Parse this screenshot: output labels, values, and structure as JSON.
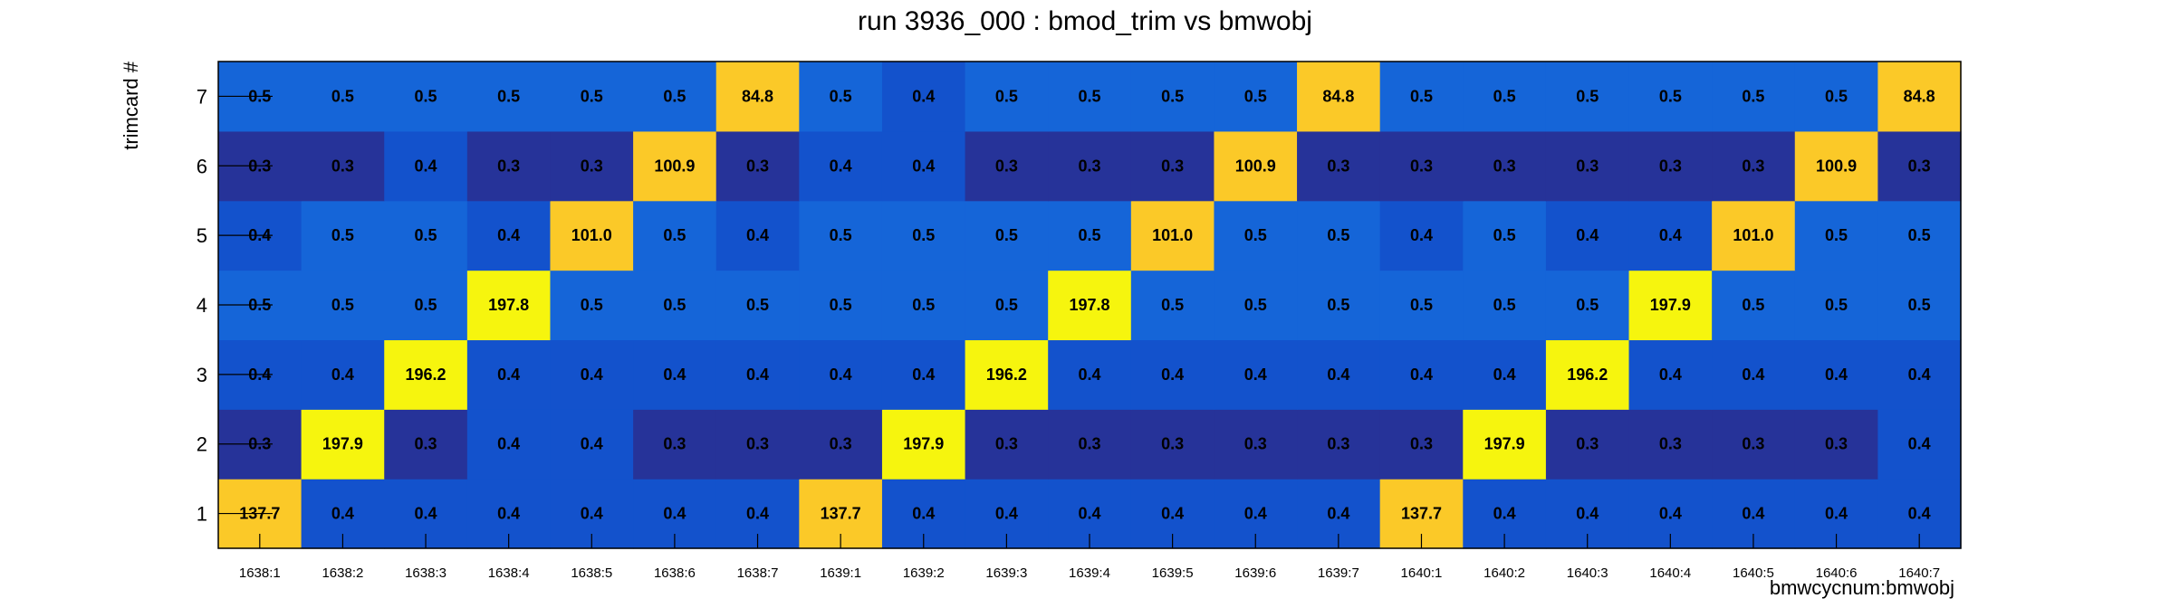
{
  "chart_data": {
    "type": "heatmap",
    "title": "run 3936_000 : bmod_trim vs bmwobj",
    "xlabel": "bmwcycnum:bmwobj",
    "ylabel": "trimcard #",
    "x_categories": [
      "1638:1",
      "1638:2",
      "1638:3",
      "1638:4",
      "1638:5",
      "1638:6",
      "1638:7",
      "1639:1",
      "1639:2",
      "1639:3",
      "1639:4",
      "1639:5",
      "1639:6",
      "1639:7",
      "1640:1",
      "1640:2",
      "1640:3",
      "1640:4",
      "1640:5",
      "1640:6",
      "1640:7"
    ],
    "y_categories": [
      "1",
      "2",
      "3",
      "4",
      "5",
      "6",
      "7"
    ],
    "values": [
      [
        "137.7",
        "0.4",
        "0.4",
        "0.4",
        "0.4",
        "0.4",
        "0.4",
        "137.7",
        "0.4",
        "0.4",
        "0.4",
        "0.4",
        "0.4",
        "0.4",
        "137.7",
        "0.4",
        "0.4",
        "0.4",
        "0.4",
        "0.4",
        "0.4"
      ],
      [
        "0.3",
        "197.9",
        "0.3",
        "0.4",
        "0.4",
        "0.3",
        "0.3",
        "0.3",
        "197.9",
        "0.3",
        "0.3",
        "0.3",
        "0.3",
        "0.3",
        "0.3",
        "197.9",
        "0.3",
        "0.3",
        "0.3",
        "0.3",
        "0.4"
      ],
      [
        "0.4",
        "0.4",
        "196.2",
        "0.4",
        "0.4",
        "0.4",
        "0.4",
        "0.4",
        "0.4",
        "196.2",
        "0.4",
        "0.4",
        "0.4",
        "0.4",
        "0.4",
        "0.4",
        "196.2",
        "0.4",
        "0.4",
        "0.4",
        "0.4"
      ],
      [
        "0.5",
        "0.5",
        "0.5",
        "197.8",
        "0.5",
        "0.5",
        "0.5",
        "0.5",
        "0.5",
        "0.5",
        "197.8",
        "0.5",
        "0.5",
        "0.5",
        "0.5",
        "0.5",
        "0.5",
        "197.9",
        "0.5",
        "0.5",
        "0.5"
      ],
      [
        "0.4",
        "0.5",
        "0.5",
        "0.4",
        "101.0",
        "0.5",
        "0.4",
        "0.5",
        "0.5",
        "0.5",
        "0.5",
        "101.0",
        "0.5",
        "0.5",
        "0.4",
        "0.5",
        "0.4",
        "0.4",
        "101.0",
        "0.5",
        "0.5"
      ],
      [
        "0.3",
        "0.3",
        "0.4",
        "0.3",
        "0.3",
        "100.9",
        "0.3",
        "0.4",
        "0.4",
        "0.3",
        "0.3",
        "0.3",
        "100.9",
        "0.3",
        "0.3",
        "0.3",
        "0.3",
        "0.3",
        "0.3",
        "100.9",
        "0.3"
      ],
      [
        "0.5",
        "0.5",
        "0.5",
        "0.5",
        "0.5",
        "0.5",
        "84.8",
        "0.5",
        "0.4",
        "0.5",
        "0.5",
        "0.5",
        "0.5",
        "84.8",
        "0.5",
        "0.5",
        "0.5",
        "0.5",
        "0.5",
        "0.5",
        "84.8"
      ]
    ],
    "colors": {
      "low": "#263399",
      "mid_low": "#1352cc",
      "mid": "#1565d8",
      "high_mid": "#fbc928",
      "high": "#f6f50e"
    }
  }
}
